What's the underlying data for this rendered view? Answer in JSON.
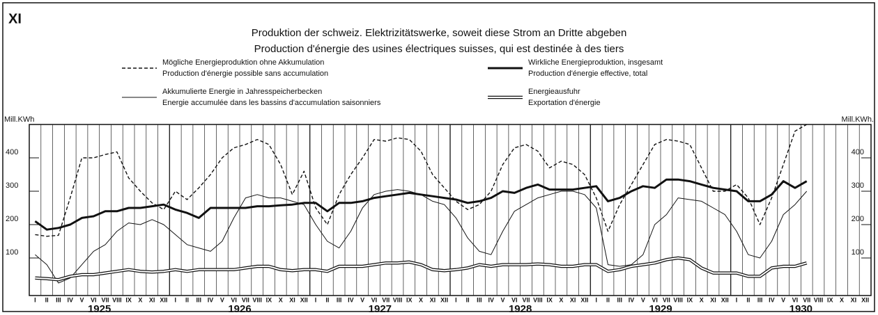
{
  "chart_data": {
    "type": "line",
    "corner_label": "XI",
    "title": "Produktion der schweiz. Elektrizitätswerke, soweit diese Strom an Dritte abgeben",
    "subtitle": "Production d'énergie des usines électriques suisses, qui est destinée à des tiers",
    "y_unit_left": "Mill.KWh",
    "y_unit_right": "Mill.KWh.",
    "categories": [
      "I",
      "II",
      "III",
      "IV",
      "V",
      "VI",
      "VII",
      "VIII",
      "IX",
      "X",
      "XI",
      "XII",
      "I",
      "II",
      "III",
      "IV",
      "V",
      "VI",
      "VII",
      "VIII",
      "IX",
      "X",
      "XI",
      "XII",
      "I",
      "II",
      "III",
      "IV",
      "V",
      "VI",
      "VII",
      "VIII",
      "IX",
      "X",
      "XI",
      "XII",
      "I",
      "II",
      "III",
      "IV",
      "V",
      "VI",
      "VII",
      "VIII",
      "IX",
      "X",
      "XI",
      "XII",
      "I",
      "II",
      "III",
      "IV",
      "V",
      "VI",
      "VII",
      "VIII",
      "IX",
      "X",
      "XI",
      "XII",
      "I",
      "II",
      "III",
      "IV",
      "V",
      "VI",
      "VII",
      "VIII",
      "IX",
      "X",
      "XI",
      "XII"
    ],
    "years": [
      "1925",
      "1926",
      "1927",
      "1928",
      "1929",
      "1930"
    ],
    "ylim": [
      0,
      500
    ],
    "yticks": [
      100,
      200,
      300,
      400
    ],
    "series": [
      {
        "name": "Mögliche Energieproduktion ohne Akkumulation",
        "name_fr": "Production d'énergie possible sans accumulation",
        "style": "dashed",
        "color": "#111111",
        "values": [
          170,
          165,
          168,
          280,
          400,
          400,
          410,
          418,
          340,
          300,
          265,
          245,
          300,
          275,
          310,
          350,
          400,
          430,
          440,
          455,
          440,
          380,
          290,
          360,
          250,
          200,
          290,
          350,
          400,
          455,
          450,
          460,
          455,
          420,
          350,
          310,
          270,
          245,
          260,
          300,
          380,
          430,
          440,
          420,
          370,
          390,
          380,
          350,
          280,
          180,
          260,
          320,
          380,
          440,
          455,
          450,
          440,
          370,
          300,
          300,
          320,
          280,
          200,
          280,
          380,
          480,
          500,
          null,
          null,
          null,
          null,
          null
        ]
      },
      {
        "name": "Wirkliche Energieproduktion, insgesamt",
        "name_fr": "Production d'énergie effective, total",
        "style": "thick",
        "color": "#111111",
        "values": [
          210,
          185,
          190,
          200,
          220,
          225,
          240,
          240,
          250,
          250,
          255,
          260,
          245,
          235,
          220,
          250,
          250,
          250,
          250,
          255,
          255,
          258,
          260,
          265,
          265,
          240,
          265,
          265,
          270,
          280,
          285,
          290,
          295,
          290,
          285,
          280,
          275,
          265,
          270,
          280,
          300,
          295,
          310,
          320,
          305,
          305,
          305,
          310,
          315,
          270,
          280,
          300,
          315,
          310,
          335,
          335,
          330,
          320,
          310,
          305,
          300,
          270,
          270,
          290,
          330,
          310,
          330,
          null,
          null,
          null,
          null,
          null
        ]
      },
      {
        "name": "Akkumulierte Energie in Jahresspeicherbecken",
        "name_fr": "Energie accumulée dans les bassins d'accumulation saisonniers",
        "style": "thin",
        "color": "#111111",
        "values": [
          110,
          80,
          25,
          40,
          80,
          120,
          140,
          180,
          205,
          200,
          215,
          200,
          170,
          140,
          130,
          120,
          150,
          220,
          280,
          290,
          280,
          280,
          270,
          260,
          200,
          150,
          130,
          180,
          250,
          290,
          300,
          305,
          300,
          290,
          270,
          260,
          220,
          160,
          120,
          110,
          180,
          240,
          260,
          280,
          290,
          300,
          300,
          290,
          250,
          80,
          75,
          80,
          110,
          200,
          230,
          280,
          275,
          270,
          250,
          230,
          180,
          110,
          100,
          150,
          230,
          260,
          300,
          null,
          null,
          null,
          null,
          null
        ]
      },
      {
        "name": "Energieausfuhr",
        "name_fr": "Exportation d'énergie",
        "style": "double",
        "color": "#111111",
        "values": [
          40,
          38,
          35,
          45,
          50,
          50,
          55,
          60,
          65,
          60,
          58,
          60,
          65,
          60,
          65,
          65,
          65,
          65,
          70,
          75,
          75,
          65,
          62,
          65,
          65,
          60,
          75,
          75,
          75,
          80,
          85,
          85,
          88,
          80,
          65,
          62,
          65,
          70,
          80,
          75,
          80,
          80,
          80,
          82,
          80,
          75,
          75,
          80,
          80,
          60,
          65,
          75,
          80,
          85,
          95,
          100,
          95,
          70,
          55,
          55,
          55,
          45,
          45,
          70,
          75,
          75,
          85,
          null,
          null,
          null,
          null,
          null
        ]
      }
    ]
  }
}
